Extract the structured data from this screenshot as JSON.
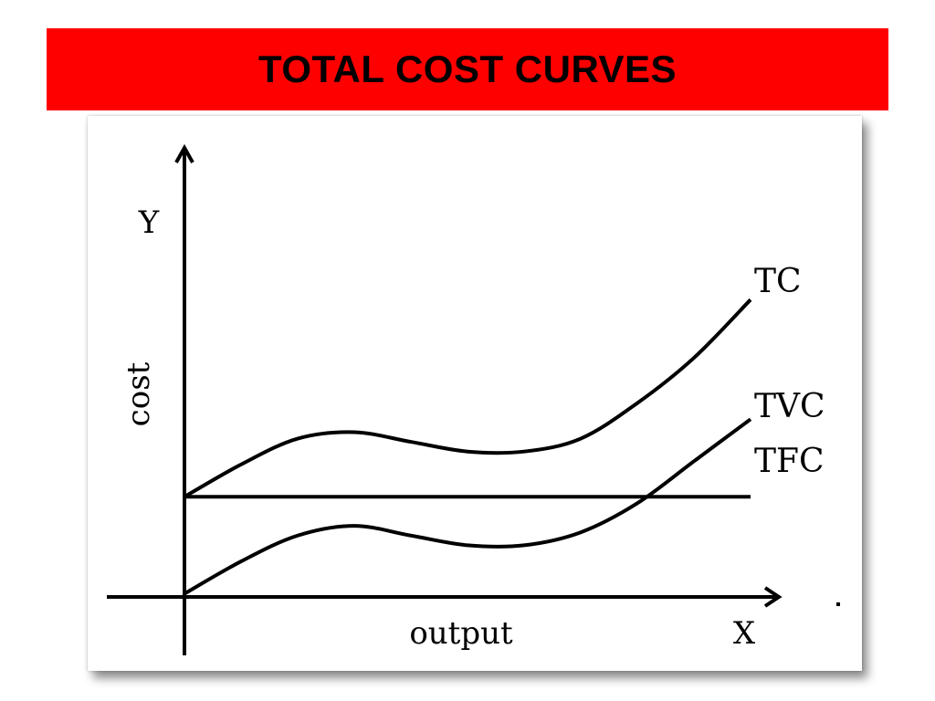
{
  "header": {
    "title": "TOTAL COST CURVES"
  },
  "colors": {
    "title_bar": "#ff0000",
    "line": "#000000",
    "background": "#ffffff"
  },
  "chart_data": {
    "type": "line",
    "title": "TOTAL COST CURVES",
    "xlabel": "output",
    "ylabel": "cost",
    "x_axis_letter": "X",
    "y_axis_letter": "Y",
    "xlim": [
      0,
      10
    ],
    "ylim": [
      0,
      10
    ],
    "grid": false,
    "legend": "none",
    "series": [
      {
        "name": "TC",
        "x": [
          0,
          1,
          2,
          3,
          4,
          5,
          6,
          7,
          8,
          9,
          10
        ],
        "y": [
          3.1,
          4.1,
          4.9,
          5.1,
          4.8,
          4.5,
          4.5,
          4.9,
          6.0,
          7.4,
          9.2
        ]
      },
      {
        "name": "TVC",
        "x": [
          0,
          1,
          2,
          3,
          4,
          5,
          6,
          7,
          8,
          9,
          10
        ],
        "y": [
          0.1,
          1.1,
          1.9,
          2.2,
          1.9,
          1.6,
          1.6,
          2.0,
          2.9,
          4.2,
          5.5
        ]
      },
      {
        "name": "TFC",
        "x": [
          0,
          10
        ],
        "y": [
          3.1,
          3.1
        ]
      }
    ]
  }
}
